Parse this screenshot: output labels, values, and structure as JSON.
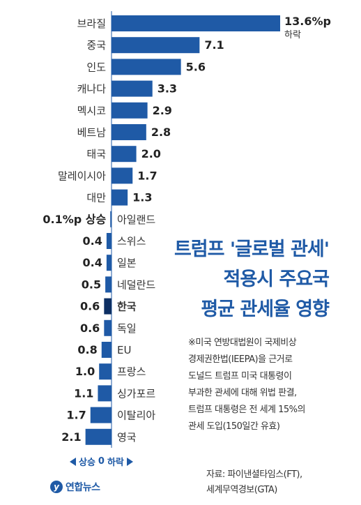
{
  "title_lines": [
    "트럼프 '글로벌 관세'",
    "적용시 주요국",
    "평균 관세율 영향"
  ],
  "note_lines": [
    "※미국 연방대법원이 국제비상",
    "경제권한법(IEEPA)을 근거로",
    "도널드 트럼프 미국 대통령이",
    "부과한 관세에 대해 위법 판결,",
    "트럼프 대통령은 전 세계 15%의",
    "관세 도입(150일간 유효)"
  ],
  "source_lines": [
    "자료: 파이낸셜타임스(FT),",
    "세계무역경보(GTA)"
  ],
  "logo_text": "연합뉴스",
  "logo_mark": "y",
  "legend": {
    "left": "상승",
    "zero": "0",
    "right": "하락"
  },
  "top_value_suffix": "%p",
  "top_value_sub": "하락",
  "zero_value_label": "0.1%p 상승",
  "colors": {
    "bar": "#1f5aa6",
    "highlight": "#0d2f63",
    "title": "#1f5aa6"
  },
  "chart_data": {
    "type": "bar",
    "orientation": "horizontal-diverging",
    "title": "트럼프 '글로벌 관세' 적용시 주요국 평균 관세율 영향",
    "unit": "%p",
    "categories": [
      "브라질",
      "중국",
      "인도",
      "캐나다",
      "멕시코",
      "베트남",
      "태국",
      "말레이시아",
      "대만",
      "아일랜드",
      "스위스",
      "일본",
      "네덜란드",
      "한국",
      "독일",
      "EU",
      "프랑스",
      "싱가포르",
      "이탈리아",
      "영국"
    ],
    "values": [
      13.6,
      7.1,
      5.6,
      3.3,
      2.9,
      2.8,
      2.0,
      1.7,
      1.3,
      -0.1,
      -0.4,
      -0.4,
      -0.5,
      -0.6,
      -0.6,
      -0.8,
      -1.0,
      -1.1,
      -1.7,
      -2.1
    ],
    "labels": [
      "13.6",
      "7.1",
      "5.6",
      "3.3",
      "2.9",
      "2.8",
      "2.0",
      "1.7",
      "1.3",
      "",
      "0.4",
      "0.4",
      "0.5",
      "0.6",
      "0.6",
      "0.8",
      "1.0",
      "1.1",
      "1.7",
      "2.1"
    ],
    "direction_note": "positive = 하락 (decrease), negative = 상승 (increase)",
    "highlight": "한국"
  }
}
